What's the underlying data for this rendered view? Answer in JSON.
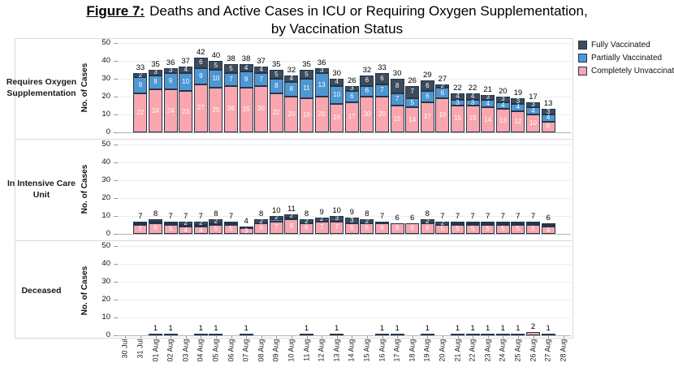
{
  "title": {
    "figure_label": "Figure 7:",
    "line1": "Deaths and Active Cases in ICU or Requiring Oxygen Supplementation,",
    "line2": "by Vaccination Status"
  },
  "legend": [
    {
      "label": "Fully Vaccinated",
      "color": "#3d4b5a"
    },
    {
      "label": "Partially Vaccinated",
      "color": "#4f97d3"
    },
    {
      "label": "Completely Unvaccinated",
      "color": "#f9a6af"
    }
  ],
  "bar_border_color": "#23364b",
  "panels": [
    {
      "label_lines": [
        "Requires Oxygen",
        "Supplementation"
      ]
    },
    {
      "label_lines": [
        "In Intensive Care",
        "Unit"
      ]
    },
    {
      "label_lines": [
        "Deceased"
      ]
    }
  ],
  "axes": {
    "ylabel": "No. of Cases",
    "yticks": [
      0,
      10,
      20,
      30,
      40,
      50
    ],
    "ylim": [
      0,
      50
    ],
    "xticklabels": [
      "30 Jul",
      "31 Jul",
      "01 Aug",
      "02 Aug",
      "03 Aug",
      "04 Aug",
      "05 Aug",
      "06 Aug",
      "07 Aug",
      "08 Aug",
      "09 Aug",
      "10 Aug",
      "11 Aug",
      "12 Aug",
      "13 Aug",
      "14 Aug",
      "15 Aug",
      "16 Aug",
      "17 Aug",
      "18 Aug",
      "19 Aug",
      "20 Aug",
      "21 Aug",
      "22 Aug",
      "23 Aug",
      "24 Aug",
      "25 Aug",
      "26 Aug",
      "27 Aug",
      "28 Aug"
    ]
  },
  "chart_data": [
    {
      "type": "bar",
      "stacked": true,
      "panel": "Requires Oxygen Supplementation",
      "ylabel": "No. of Cases",
      "ylim": [
        0,
        50
      ],
      "grid": true,
      "show_segment_labels": true,
      "categories": [
        "30 Jul",
        "31 Jul",
        "01 Aug",
        "02 Aug",
        "03 Aug",
        "04 Aug",
        "05 Aug",
        "06 Aug",
        "07 Aug",
        "08 Aug",
        "09 Aug",
        "10 Aug",
        "11 Aug",
        "12 Aug",
        "13 Aug",
        "14 Aug",
        "15 Aug",
        "16 Aug",
        "17 Aug",
        "18 Aug",
        "19 Aug",
        "20 Aug",
        "21 Aug",
        "22 Aug",
        "23 Aug",
        "24 Aug",
        "25 Aug",
        "26 Aug",
        "27 Aug",
        "28 Aug"
      ],
      "series": [
        {
          "name": "Completely Unvaccinated",
          "values": [
            0,
            22,
            24,
            24,
            23,
            27,
            25,
            26,
            25,
            26,
            22,
            20,
            19,
            20,
            16,
            17,
            20,
            20,
            15,
            14,
            17,
            19,
            15,
            15,
            14,
            13,
            12,
            10,
            6,
            0
          ]
        },
        {
          "name": "Partially Vaccinated",
          "values": [
            0,
            9,
            8,
            9,
            10,
            9,
            10,
            7,
            9,
            7,
            8,
            8,
            11,
            13,
            10,
            6,
            6,
            7,
            7,
            5,
            6,
            6,
            3,
            3,
            4,
            4,
            4,
            4,
            4,
            0
          ]
        },
        {
          "name": "Fully Vaccinated",
          "values": [
            0,
            2,
            3,
            3,
            4,
            6,
            5,
            5,
            4,
            4,
            5,
            4,
            5,
            3,
            4,
            3,
            6,
            6,
            8,
            7,
            6,
            2,
            4,
            4,
            3,
            3,
            3,
            3,
            3,
            0
          ]
        }
      ],
      "totals": [
        0,
        33,
        35,
        36,
        37,
        42,
        40,
        38,
        38,
        37,
        35,
        32,
        35,
        36,
        30,
        26,
        32,
        33,
        30,
        26,
        29,
        27,
        22,
        22,
        21,
        20,
        19,
        17,
        13,
        0
      ]
    },
    {
      "type": "bar",
      "stacked": true,
      "panel": "In Intensive Care Unit",
      "ylabel": "No. of Cases",
      "ylim": [
        0,
        50
      ],
      "grid": true,
      "show_segment_labels": true,
      "categories": [
        "30 Jul",
        "31 Jul",
        "01 Aug",
        "02 Aug",
        "03 Aug",
        "04 Aug",
        "05 Aug",
        "06 Aug",
        "07 Aug",
        "08 Aug",
        "09 Aug",
        "10 Aug",
        "11 Aug",
        "12 Aug",
        "13 Aug",
        "14 Aug",
        "15 Aug",
        "16 Aug",
        "17 Aug",
        "18 Aug",
        "19 Aug",
        "20 Aug",
        "21 Aug",
        "22 Aug",
        "23 Aug",
        "24 Aug",
        "25 Aug",
        "26 Aug",
        "27 Aug",
        "28 Aug"
      ],
      "series": [
        {
          "name": "Completely Unvaccinated",
          "values": [
            0,
            5,
            6,
            5,
            4,
            4,
            5,
            5,
            3,
            6,
            7,
            8,
            6,
            7,
            7,
            6,
            6,
            6,
            6,
            6,
            6,
            5,
            5,
            5,
            5,
            5,
            5,
            5,
            4,
            0
          ]
        },
        {
          "name": "Partially Vaccinated",
          "values": [
            0,
            1,
            1,
            1,
            1,
            1,
            1,
            1,
            0,
            0,
            1,
            1,
            0,
            0,
            0,
            0,
            0,
            0,
            0,
            0,
            0,
            0,
            1,
            1,
            1,
            1,
            1,
            1,
            1,
            0
          ]
        },
        {
          "name": "Fully Vaccinated",
          "values": [
            0,
            1,
            1,
            1,
            2,
            2,
            2,
            1,
            1,
            2,
            2,
            2,
            2,
            2,
            3,
            3,
            2,
            1,
            0,
            0,
            2,
            2,
            1,
            1,
            1,
            1,
            1,
            1,
            1,
            0
          ]
        }
      ],
      "totals": [
        0,
        7,
        8,
        7,
        7,
        7,
        8,
        7,
        4,
        8,
        10,
        11,
        8,
        9,
        10,
        9,
        8,
        7,
        6,
        6,
        8,
        7,
        7,
        7,
        7,
        7,
        7,
        7,
        6,
        0
      ]
    },
    {
      "type": "bar",
      "stacked": true,
      "panel": "Deceased",
      "ylabel": "No. of Cases",
      "ylim": [
        0,
        50
      ],
      "grid": true,
      "show_segment_labels": false,
      "categories": [
        "30 Jul",
        "31 Jul",
        "01 Aug",
        "02 Aug",
        "03 Aug",
        "04 Aug",
        "05 Aug",
        "06 Aug",
        "07 Aug",
        "08 Aug",
        "09 Aug",
        "10 Aug",
        "11 Aug",
        "12 Aug",
        "13 Aug",
        "14 Aug",
        "15 Aug",
        "16 Aug",
        "17 Aug",
        "18 Aug",
        "19 Aug",
        "20 Aug",
        "21 Aug",
        "22 Aug",
        "23 Aug",
        "24 Aug",
        "25 Aug",
        "26 Aug",
        "27 Aug",
        "28 Aug"
      ],
      "series": [
        {
          "name": "Completely Unvaccinated",
          "values": [
            0,
            0,
            1,
            1,
            0,
            1,
            1,
            0,
            1,
            0,
            0,
            0,
            1,
            0,
            1,
            0,
            0,
            1,
            0,
            0,
            1,
            0,
            1,
            0,
            1,
            0,
            1,
            2,
            1,
            0
          ]
        },
        {
          "name": "Partially Vaccinated",
          "values": [
            0,
            0,
            0,
            0,
            0,
            0,
            0,
            0,
            0,
            0,
            0,
            0,
            0,
            0,
            0,
            0,
            0,
            0,
            0,
            0,
            0,
            0,
            0,
            1,
            0,
            1,
            0,
            0,
            0,
            0
          ]
        },
        {
          "name": "Fully Vaccinated",
          "values": [
            0,
            0,
            0,
            0,
            0,
            0,
            0,
            0,
            0,
            0,
            0,
            0,
            0,
            0,
            0,
            0,
            0,
            0,
            1,
            0,
            0,
            0,
            0,
            0,
            0,
            0,
            0,
            0,
            0,
            0
          ]
        }
      ],
      "totals": [
        0,
        0,
        1,
        1,
        0,
        1,
        1,
        0,
        1,
        0,
        0,
        0,
        1,
        0,
        1,
        0,
        0,
        1,
        1,
        0,
        1,
        0,
        1,
        1,
        1,
        1,
        1,
        2,
        1,
        0
      ]
    }
  ]
}
